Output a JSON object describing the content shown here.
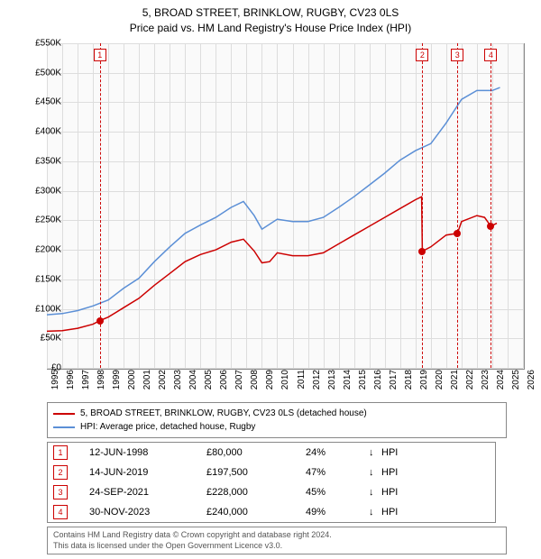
{
  "title_line1": "5, BROAD STREET, BRINKLOW, RUGBY, CV23 0LS",
  "title_line2": "Price paid vs. HM Land Registry's House Price Index (HPI)",
  "chart": {
    "type": "line",
    "background_color": "#fafafa",
    "grid_color": "#dddddd",
    "border_color": "#888888",
    "x_range": [
      1995,
      2026
    ],
    "y_range": [
      0,
      550000
    ],
    "y_ticks": [
      0,
      50000,
      100000,
      150000,
      200000,
      250000,
      300000,
      350000,
      400000,
      450000,
      500000,
      550000
    ],
    "y_tick_labels": [
      "£0",
      "£50K",
      "£100K",
      "£150K",
      "£200K",
      "£250K",
      "£300K",
      "£350K",
      "£400K",
      "£450K",
      "£500K",
      "£550K"
    ],
    "x_ticks": [
      1995,
      1996,
      1997,
      1998,
      1999,
      2000,
      2001,
      2002,
      2003,
      2004,
      2005,
      2006,
      2007,
      2008,
      2009,
      2010,
      2011,
      2012,
      2013,
      2014,
      2015,
      2016,
      2017,
      2018,
      2019,
      2020,
      2021,
      2022,
      2023,
      2024,
      2025,
      2026
    ],
    "label_fontsize": 10,
    "series": [
      {
        "name": "price_paid",
        "label": "5, BROAD STREET, BRINKLOW, RUGBY, CV23 0LS (detached house)",
        "color": "#cc0000",
        "line_width": 1.5,
        "data": [
          [
            1995.0,
            62000
          ],
          [
            1996.0,
            63000
          ],
          [
            1997.0,
            67000
          ],
          [
            1998.0,
            74000
          ],
          [
            1998.45,
            80000
          ],
          [
            1999.0,
            86000
          ],
          [
            2000.0,
            102000
          ],
          [
            2001.0,
            118000
          ],
          [
            2002.0,
            140000
          ],
          [
            2003.0,
            160000
          ],
          [
            2004.0,
            180000
          ],
          [
            2005.0,
            192000
          ],
          [
            2006.0,
            200000
          ],
          [
            2007.0,
            213000
          ],
          [
            2007.8,
            218000
          ],
          [
            2008.5,
            198000
          ],
          [
            2009.0,
            178000
          ],
          [
            2009.5,
            180000
          ],
          [
            2010.0,
            195000
          ],
          [
            2011.0,
            190000
          ],
          [
            2012.0,
            190000
          ],
          [
            2013.0,
            195000
          ],
          [
            2014.0,
            210000
          ],
          [
            2015.0,
            225000
          ],
          [
            2016.0,
            240000
          ],
          [
            2017.0,
            255000
          ],
          [
            2018.0,
            270000
          ],
          [
            2019.0,
            285000
          ],
          [
            2019.4,
            290000
          ],
          [
            2019.45,
            197500
          ],
          [
            2020.0,
            205000
          ],
          [
            2021.0,
            225000
          ],
          [
            2021.73,
            228000
          ],
          [
            2022.0,
            248000
          ],
          [
            2023.0,
            258000
          ],
          [
            2023.5,
            255000
          ],
          [
            2023.91,
            240000
          ],
          [
            2024.3,
            245000
          ]
        ]
      },
      {
        "name": "hpi",
        "label": "HPI: Average price, detached house, Rugby",
        "color": "#5b8fd6",
        "line_width": 1.5,
        "data": [
          [
            1995.0,
            90000
          ],
          [
            1996.0,
            92000
          ],
          [
            1997.0,
            97000
          ],
          [
            1998.0,
            105000
          ],
          [
            1999.0,
            115000
          ],
          [
            2000.0,
            135000
          ],
          [
            2001.0,
            152000
          ],
          [
            2002.0,
            180000
          ],
          [
            2003.0,
            205000
          ],
          [
            2004.0,
            228000
          ],
          [
            2005.0,
            242000
          ],
          [
            2006.0,
            255000
          ],
          [
            2007.0,
            272000
          ],
          [
            2007.8,
            282000
          ],
          [
            2008.5,
            258000
          ],
          [
            2009.0,
            235000
          ],
          [
            2010.0,
            252000
          ],
          [
            2011.0,
            248000
          ],
          [
            2012.0,
            248000
          ],
          [
            2013.0,
            255000
          ],
          [
            2014.0,
            272000
          ],
          [
            2015.0,
            290000
          ],
          [
            2016.0,
            310000
          ],
          [
            2017.0,
            330000
          ],
          [
            2018.0,
            352000
          ],
          [
            2019.0,
            368000
          ],
          [
            2020.0,
            380000
          ],
          [
            2021.0,
            415000
          ],
          [
            2022.0,
            455000
          ],
          [
            2023.0,
            470000
          ],
          [
            2024.0,
            470000
          ],
          [
            2024.5,
            475000
          ]
        ]
      }
    ],
    "sale_markers": [
      {
        "n": "1",
        "year": 1998.45,
        "price": 80000
      },
      {
        "n": "2",
        "year": 2019.45,
        "price": 197500
      },
      {
        "n": "3",
        "year": 2021.73,
        "price": 228000
      },
      {
        "n": "4",
        "year": 2023.91,
        "price": 240000
      }
    ],
    "marker_color": "#cc0000",
    "dot_color": "#cc0000"
  },
  "legend": {
    "items": [
      {
        "color": "#cc0000",
        "label": "5, BROAD STREET, BRINKLOW, RUGBY, CV23 0LS (detached house)"
      },
      {
        "color": "#5b8fd6",
        "label": "HPI: Average price, detached house, Rugby"
      }
    ]
  },
  "sales_table": {
    "rows": [
      {
        "n": "1",
        "date": "12-JUN-1998",
        "price": "£80,000",
        "pct": "24%",
        "arrow": "↓",
        "tag": "HPI"
      },
      {
        "n": "2",
        "date": "14-JUN-2019",
        "price": "£197,500",
        "pct": "47%",
        "arrow": "↓",
        "tag": "HPI"
      },
      {
        "n": "3",
        "date": "24-SEP-2021",
        "price": "£228,000",
        "pct": "45%",
        "arrow": "↓",
        "tag": "HPI"
      },
      {
        "n": "4",
        "date": "30-NOV-2023",
        "price": "£240,000",
        "pct": "49%",
        "arrow": "↓",
        "tag": "HPI"
      }
    ]
  },
  "footer": {
    "line1": "Contains HM Land Registry data © Crown copyright and database right 2024.",
    "line2": "This data is licensed under the Open Government Licence v3.0."
  }
}
